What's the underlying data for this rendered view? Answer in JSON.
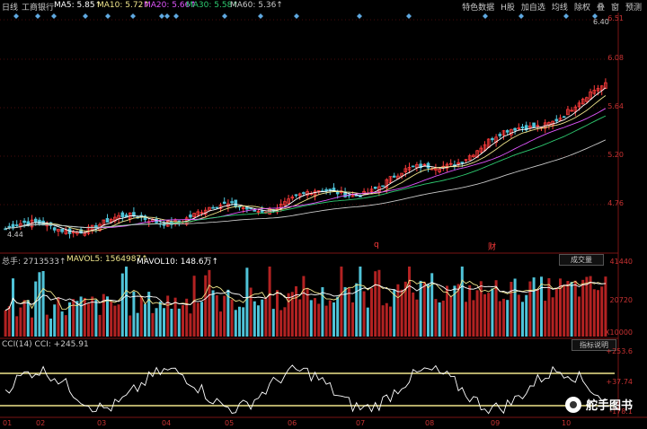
{
  "topbar": {
    "period": "日线",
    "stock": "工商银行",
    "ma5": "MA5: 5.85↑",
    "ma10": "MA10: 5.72↑",
    "ma20": "MA20: 5.66↑",
    "ma30": "MA30: 5.58↑",
    "ma60": "MA60: 5.36↑",
    "menu": [
      "特色数据",
      "H股",
      "加自选",
      "均线",
      "除权",
      "叠",
      "窗",
      "预测"
    ]
  },
  "colors": {
    "up": "#ff3b3b",
    "down": "#4fc3d8",
    "ma5": "#ffffff",
    "ma10": "#f0e68c",
    "ma20": "#e056fd",
    "ma30": "#2ecc71",
    "ma60": "#c8c8c8",
    "cci_band": "#f0e68c"
  },
  "price_panel": {
    "axis": [
      "6.51",
      "6.08",
      "5.64",
      "5.20",
      "4.76"
    ],
    "high_label": "6.40",
    "low_label": "4.44",
    "markers": [
      "q",
      "财"
    ]
  },
  "volume_panel": {
    "legend_total": "总手: 2713533↑",
    "legend_mavol5": "MAVOL5: 1564987↑",
    "legend_mavol10": "MAVOL10: 148.6万↑",
    "tag": "成交量",
    "axis": [
      "41440",
      "20720",
      "X10000"
    ]
  },
  "cci_panel": {
    "legend": "CCI(14) CCI: +245.91",
    "tag": "指标说明",
    "axis": [
      "+253.6",
      "+37.74",
      "-178.1"
    ]
  },
  "x_axis": [
    "01",
    "02",
    "03",
    "04",
    "05",
    "06",
    "07",
    "08",
    "09",
    "10"
  ],
  "watermark": "舵手图书"
}
